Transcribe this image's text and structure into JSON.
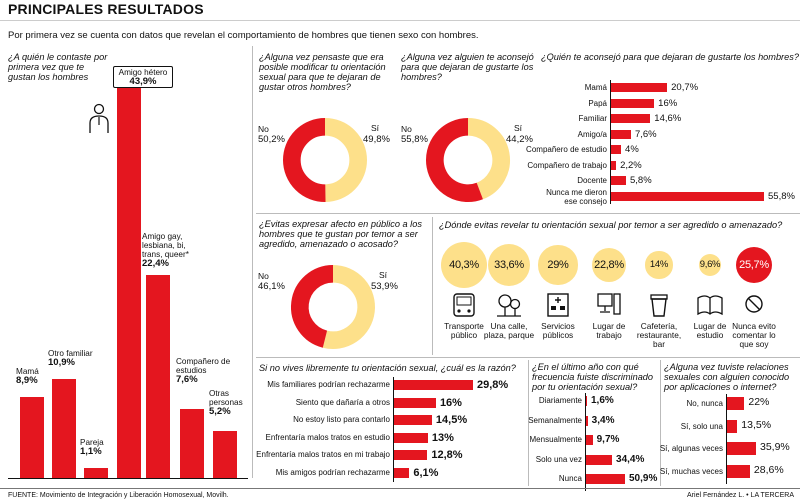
{
  "header": {
    "title": "PRINCIPALES RESULTADOS",
    "subtitle": "Por primera vez se cuenta con datos que revelan el comportamiento de hombres que tienen sexo con hombres."
  },
  "colors": {
    "red": "#e4161f",
    "yellow": "#fde08a"
  },
  "chart_data": [
    {
      "type": "bar",
      "title": "¿A quién le contaste por primera vez que te gustan los hombres",
      "categories": [
        "Mamá",
        "Otro familiar",
        "Pareja",
        "Amigo hétero",
        "Amigo gay, lesbiana, bi, trans, queer*",
        "Compañero de estudios",
        "Otras personas"
      ],
      "value_labels": [
        "8,9%",
        "10,9%",
        "1,1%",
        "43,9%",
        "22,4%",
        "7,6%",
        "5,2%"
      ],
      "values": [
        8.9,
        10.9,
        1.1,
        43.9,
        22.4,
        7.6,
        5.2
      ]
    },
    {
      "type": "pie",
      "title": "¿Alguna vez pensaste que era posible modificar tu orientación sexual para que te dejaran de gustar otros hombres?",
      "labels": [
        "No",
        "Sí"
      ],
      "value_labels": [
        "50,2%",
        "49,8%"
      ],
      "values": [
        50.2,
        49.8
      ]
    },
    {
      "type": "pie",
      "title": "¿Alguna vez alguien te aconsejó para que dejaran de gustarte los hombres?",
      "labels": [
        "No",
        "Sí"
      ],
      "value_labels": [
        "55,8%",
        "44,2%"
      ],
      "values": [
        55.8,
        44.2
      ]
    },
    {
      "type": "bar",
      "title": "¿Quién te aconsejó para que dejaran de gustarte los hombres?",
      "categories": [
        "Mamá",
        "Papá",
        "Familiar",
        "Amigo/a",
        "Compañero de estudio",
        "Compañero de trabajo",
        "Docente",
        "Nunca me dieron ese consejo"
      ],
      "value_labels": [
        "20,7%",
        "16%",
        "14,6%",
        "7,6%",
        "4%",
        "2,2%",
        "5,8%",
        "55,8%"
      ],
      "values": [
        20.7,
        16,
        14.6,
        7.6,
        4,
        2.2,
        5.8,
        55.8
      ]
    },
    {
      "type": "pie",
      "title": "¿Evitas expresar afecto en público a los hombres que te gustan por temor a ser agredido, amenazado o acosado?",
      "labels": [
        "No",
        "Sí"
      ],
      "value_labels": [
        "46,1%",
        "53,9%"
      ],
      "values": [
        46.1,
        53.9
      ]
    },
    {
      "type": "bubble",
      "title": "¿Dónde evitas revelar tu orientación sexual por temor a ser agredido o amenazado?",
      "categories": [
        "Transporte público",
        "Una calle, plaza, parque",
        "Servicios públicos",
        "Lugar de trabajo",
        "Cafetería, restaurante, bar",
        "Lugar de estudio",
        "Nunca evito comentar lo que soy"
      ],
      "value_labels": [
        "40,3%",
        "33,6%",
        "29%",
        "22,8%",
        "14%",
        "9,6%",
        "25,7%"
      ],
      "values": [
        40.3,
        33.6,
        29,
        22.8,
        14,
        9.6,
        25.7
      ]
    },
    {
      "type": "bar",
      "title": "Si no vives libremente tu orientación sexual, ¿cuál es la razón?",
      "categories": [
        "Mis familiares podrían rechazarme",
        "Siento que dañaría a otros",
        "No estoy listo para contarlo",
        "Enfrentaría malos tratos en estudio",
        "Enfrentaría malos tratos en mi trabajo",
        "Mis amigos podrían rechazarme"
      ],
      "value_labels": [
        "29,8%",
        "16%",
        "14,5%",
        "13%",
        "12,8%",
        "6,1%"
      ],
      "values": [
        29.8,
        16,
        14.5,
        13,
        12.8,
        6.1
      ]
    },
    {
      "type": "bar",
      "title": "¿En el último año con qué frecuencia fuiste discriminado por tu orientación sexual?",
      "categories": [
        "Diariamente",
        "Semanalmente",
        "Mensualmente",
        "Solo una vez",
        "Nunca"
      ],
      "value_labels": [
        "1,6%",
        "3,4%",
        "9,7%",
        "34,4%",
        "50,9%"
      ],
      "values": [
        1.6,
        3.4,
        9.7,
        34.4,
        50.9
      ]
    },
    {
      "type": "bar",
      "title": "¿Alguna vez tuviste relaciones sexuales con alguien conocido por aplicaciones o internet?",
      "categories": [
        "No, nunca",
        "Sí, solo una",
        "Sí, algunas veces",
        "Sí, muchas veces"
      ],
      "value_labels": [
        "22%",
        "13,5%",
        "35,9%",
        "28,6%"
      ],
      "values": [
        22,
        13.5,
        35.9,
        28.6
      ]
    }
  ],
  "footer": {
    "source": "FUENTE: Movimiento de Integración y Liberación Homosexual, Movilh.",
    "credit": "Ariel Fernández L. • LA TERCERA"
  }
}
